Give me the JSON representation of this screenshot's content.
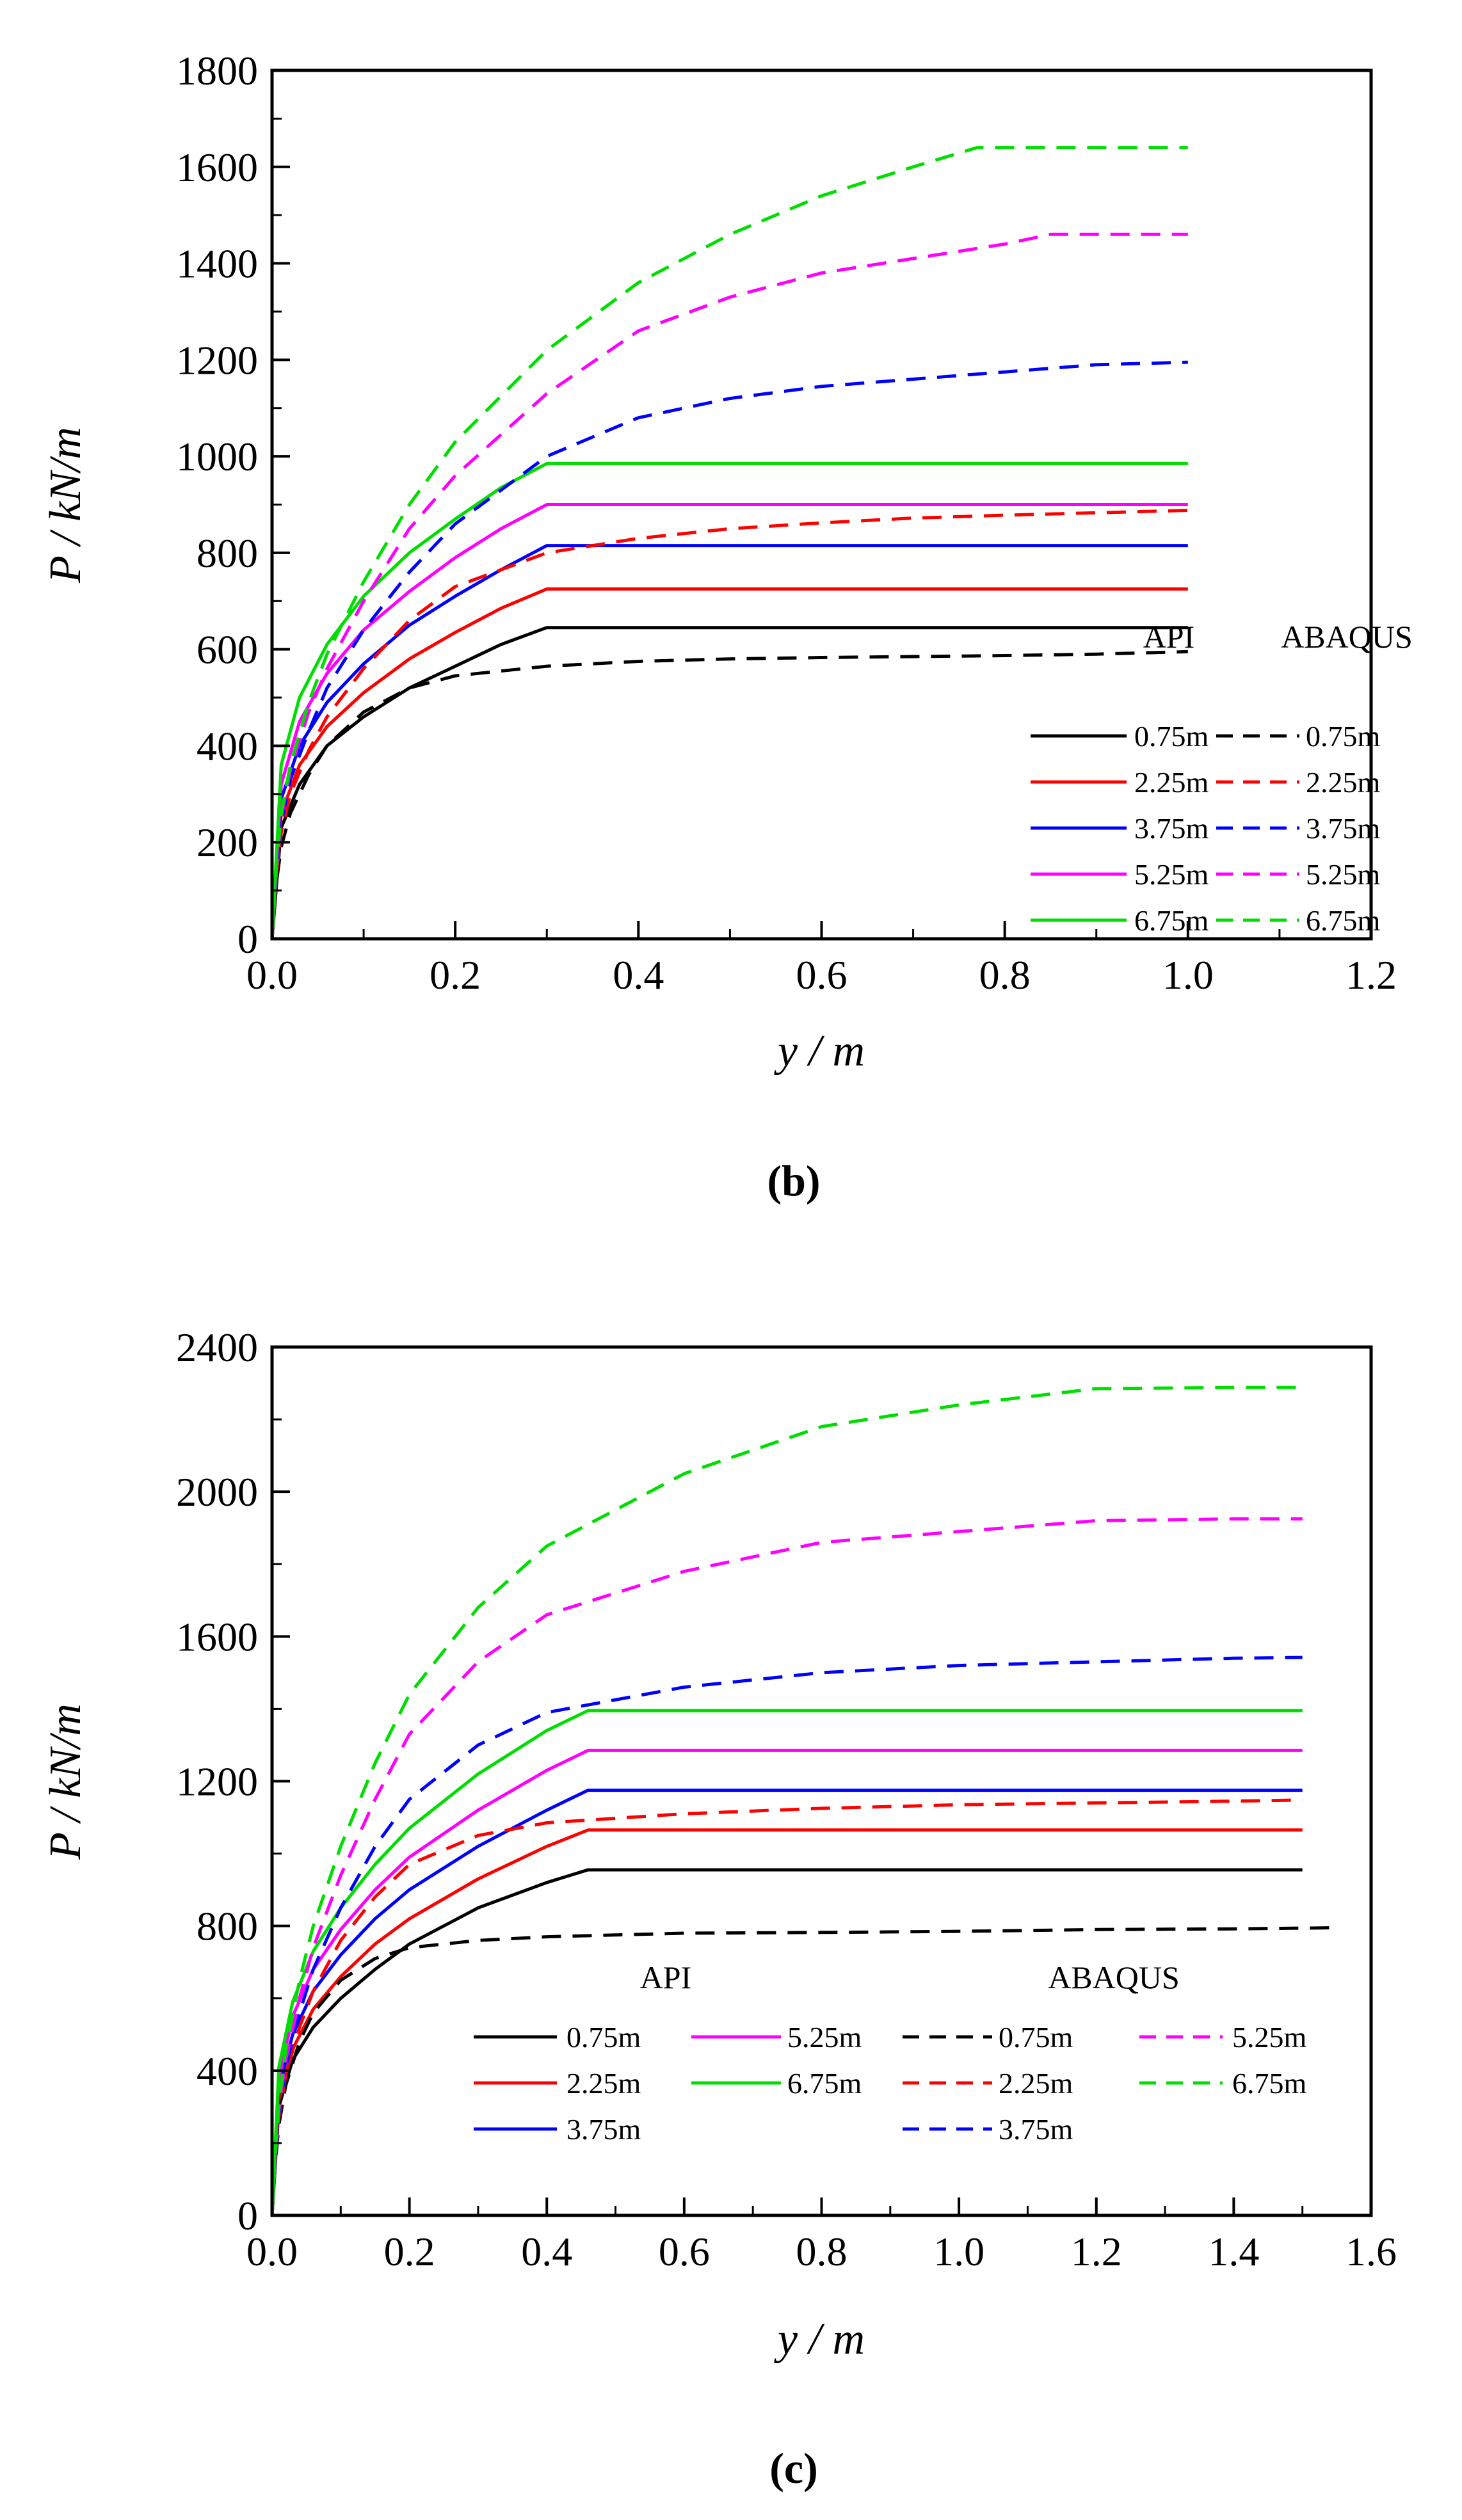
{
  "chart_data": [
    {
      "type": "line",
      "caption": "(b)",
      "xlabel": "y / m",
      "ylabel": "P / kN/m",
      "xlim": [
        0,
        1.2
      ],
      "ylim": [
        0,
        1800
      ],
      "xticks": [
        0,
        0.2,
        0.4,
        0.6,
        0.8,
        1.0,
        1.2
      ],
      "xtick_labels": [
        "0.0",
        "0.2",
        "0.4",
        "0.6",
        "0.8",
        "1.0",
        "1.2"
      ],
      "yticks": [
        0,
        200,
        400,
        600,
        800,
        1000,
        1200,
        1400,
        1600,
        1800
      ],
      "ytick_labels": [
        "0",
        "200",
        "400",
        "600",
        "800",
        "1000",
        "1200",
        "1400",
        "1600",
        "1800"
      ],
      "grid": false,
      "legend": {
        "placement": "bottom-right",
        "layout": "two-column",
        "headers": [
          "API",
          "ABAQUS"
        ]
      },
      "series": [
        {
          "name": "0.75m",
          "group": "API",
          "color": "#000000",
          "dash": "solid",
          "x": [
            0,
            0.01,
            0.03,
            0.06,
            0.1,
            0.15,
            0.2,
            0.25,
            0.3,
            1.0
          ],
          "y": [
            0,
            230,
            320,
            400,
            460,
            520,
            565,
            610,
            645,
            645
          ]
        },
        {
          "name": "2.25m",
          "group": "API",
          "color": "#ff0000",
          "dash": "solid",
          "x": [
            0,
            0.01,
            0.03,
            0.06,
            0.1,
            0.15,
            0.2,
            0.25,
            0.3,
            1.0
          ],
          "y": [
            0,
            260,
            360,
            440,
            510,
            580,
            635,
            685,
            725,
            725
          ]
        },
        {
          "name": "3.75m",
          "group": "API",
          "color": "#0000ff",
          "dash": "solid",
          "x": [
            0,
            0.01,
            0.03,
            0.06,
            0.1,
            0.15,
            0.2,
            0.25,
            0.3,
            1.0
          ],
          "y": [
            0,
            290,
            400,
            490,
            570,
            650,
            710,
            765,
            815,
            815
          ]
        },
        {
          "name": "5.25m",
          "group": "API",
          "color": "#ff00ff",
          "dash": "solid",
          "x": [
            0,
            0.01,
            0.03,
            0.06,
            0.1,
            0.15,
            0.2,
            0.25,
            0.3,
            1.0
          ],
          "y": [
            0,
            320,
            450,
            550,
            640,
            720,
            790,
            850,
            900,
            900
          ]
        },
        {
          "name": "6.75m",
          "group": "API",
          "color": "#00dd00",
          "dash": "solid",
          "x": [
            0,
            0.01,
            0.03,
            0.06,
            0.1,
            0.15,
            0.2,
            0.25,
            0.3,
            1.0
          ],
          "y": [
            0,
            360,
            500,
            610,
            710,
            800,
            870,
            935,
            985,
            985
          ]
        },
        {
          "name": "0.75m",
          "group": "ABAQUS",
          "color": "#000000",
          "dash": "dashed",
          "x": [
            0,
            0.005,
            0.01,
            0.02,
            0.04,
            0.06,
            0.1,
            0.15,
            0.2,
            0.3,
            0.4,
            0.5,
            0.6,
            0.7,
            0.8,
            0.9,
            1.0
          ],
          "y": [
            0,
            120,
            190,
            260,
            340,
            400,
            470,
            520,
            545,
            565,
            575,
            580,
            583,
            585,
            587,
            590,
            595
          ]
        },
        {
          "name": "2.25m",
          "group": "ABAQUS",
          "color": "#ff0000",
          "dash": "dashed",
          "x": [
            0,
            0.005,
            0.01,
            0.02,
            0.04,
            0.06,
            0.1,
            0.15,
            0.2,
            0.3,
            0.4,
            0.5,
            0.6,
            0.7,
            0.8,
            0.9,
            1.0
          ],
          "y": [
            0,
            140,
            220,
            300,
            390,
            460,
            560,
            660,
            730,
            800,
            830,
            850,
            862,
            872,
            878,
            883,
            888
          ]
        },
        {
          "name": "3.75m",
          "group": "ABAQUS",
          "color": "#0000ff",
          "dash": "dashed",
          "x": [
            0,
            0.005,
            0.01,
            0.02,
            0.04,
            0.06,
            0.1,
            0.15,
            0.2,
            0.3,
            0.4,
            0.5,
            0.6,
            0.7,
            0.8,
            0.9,
            1.0
          ],
          "y": [
            0,
            150,
            240,
            330,
            430,
            520,
            640,
            760,
            860,
            1000,
            1080,
            1120,
            1145,
            1160,
            1175,
            1190,
            1195
          ]
        },
        {
          "name": "5.25m",
          "group": "ABAQUS",
          "color": "#ff00ff",
          "dash": "dashed",
          "x": [
            0,
            0.005,
            0.01,
            0.02,
            0.04,
            0.06,
            0.1,
            0.15,
            0.2,
            0.3,
            0.4,
            0.5,
            0.6,
            0.7,
            0.8,
            0.85,
            1.0
          ],
          "y": [
            0,
            150,
            250,
            350,
            470,
            560,
            700,
            850,
            960,
            1130,
            1260,
            1330,
            1380,
            1410,
            1440,
            1460,
            1460
          ]
        },
        {
          "name": "6.75m",
          "group": "ABAQUS",
          "color": "#00dd00",
          "dash": "dashed",
          "x": [
            0,
            0.005,
            0.01,
            0.02,
            0.04,
            0.06,
            0.1,
            0.15,
            0.2,
            0.3,
            0.4,
            0.5,
            0.6,
            0.7,
            0.77,
            1.0
          ],
          "y": [
            0,
            160,
            260,
            360,
            490,
            590,
            740,
            900,
            1030,
            1220,
            1360,
            1460,
            1540,
            1600,
            1640,
            1640
          ]
        }
      ]
    },
    {
      "type": "line",
      "caption": "(c)",
      "xlabel": "y / m",
      "ylabel": "P / kN/m",
      "xlim": [
        0,
        1.6
      ],
      "ylim": [
        0,
        2400
      ],
      "xticks": [
        0,
        0.2,
        0.4,
        0.6,
        0.8,
        1.0,
        1.2,
        1.4,
        1.6
      ],
      "xtick_labels": [
        "0.0",
        "0.2",
        "0.4",
        "0.6",
        "0.8",
        "1.0",
        "1.2",
        "1.4",
        "1.6"
      ],
      "yticks": [
        0,
        400,
        800,
        1200,
        1600,
        2000,
        2400
      ],
      "ytick_labels": [
        "0",
        "400",
        "800",
        "1200",
        "1600",
        "2000",
        "2400"
      ],
      "grid": false,
      "legend": {
        "placement": "bottom-center",
        "layout": "grouped",
        "headers": [
          "API",
          "ABAQUS"
        ]
      },
      "series": [
        {
          "name": "0.75m",
          "group": "API",
          "color": "#000000",
          "dash": "solid",
          "x": [
            0,
            0.01,
            0.03,
            0.06,
            0.1,
            0.15,
            0.2,
            0.3,
            0.4,
            0.46,
            1.5
          ],
          "y": [
            0,
            300,
            430,
            520,
            600,
            680,
            750,
            850,
            920,
            955,
            955
          ]
        },
        {
          "name": "2.25m",
          "group": "API",
          "color": "#ff0000",
          "dash": "solid",
          "x": [
            0,
            0.01,
            0.03,
            0.06,
            0.1,
            0.15,
            0.2,
            0.3,
            0.4,
            0.46,
            1.5
          ],
          "y": [
            0,
            320,
            460,
            570,
            660,
            750,
            820,
            930,
            1020,
            1065,
            1065
          ]
        },
        {
          "name": "3.75m",
          "group": "API",
          "color": "#0000ff",
          "dash": "solid",
          "x": [
            0,
            0.01,
            0.03,
            0.06,
            0.1,
            0.15,
            0.2,
            0.3,
            0.4,
            0.46,
            1.5
          ],
          "y": [
            0,
            350,
            500,
            620,
            720,
            820,
            900,
            1020,
            1120,
            1175,
            1175
          ]
        },
        {
          "name": "5.25m",
          "group": "API",
          "color": "#ff00ff",
          "dash": "solid",
          "x": [
            0,
            0.01,
            0.03,
            0.06,
            0.1,
            0.15,
            0.2,
            0.3,
            0.4,
            0.46,
            1.5
          ],
          "y": [
            0,
            380,
            550,
            680,
            790,
            900,
            990,
            1120,
            1230,
            1285,
            1285
          ]
        },
        {
          "name": "6.75m",
          "group": "API",
          "color": "#00dd00",
          "dash": "solid",
          "x": [
            0,
            0.01,
            0.03,
            0.06,
            0.1,
            0.15,
            0.2,
            0.3,
            0.4,
            0.46,
            1.5
          ],
          "y": [
            0,
            410,
            590,
            730,
            850,
            970,
            1070,
            1220,
            1340,
            1395,
            1395
          ]
        },
        {
          "name": "0.75m",
          "group": "ABAQUS",
          "color": "#000000",
          "dash": "dashed",
          "x": [
            0,
            0.005,
            0.01,
            0.02,
            0.04,
            0.06,
            0.1,
            0.15,
            0.2,
            0.3,
            0.4,
            0.6,
            0.8,
            1.0,
            1.2,
            1.4,
            1.55
          ],
          "y": [
            0,
            150,
            250,
            360,
            480,
            560,
            650,
            710,
            740,
            760,
            770,
            780,
            782,
            785,
            790,
            792,
            795
          ]
        },
        {
          "name": "2.25m",
          "group": "ABAQUS",
          "color": "#ff0000",
          "dash": "dashed",
          "x": [
            0,
            0.005,
            0.01,
            0.02,
            0.04,
            0.06,
            0.1,
            0.15,
            0.2,
            0.3,
            0.4,
            0.6,
            0.8,
            1.0,
            1.2,
            1.4,
            1.5
          ],
          "y": [
            0,
            160,
            270,
            390,
            520,
            620,
            760,
            880,
            970,
            1050,
            1085,
            1110,
            1125,
            1135,
            1140,
            1145,
            1148
          ]
        },
        {
          "name": "3.75m",
          "group": "ABAQUS",
          "color": "#0000ff",
          "dash": "dashed",
          "x": [
            0,
            0.005,
            0.01,
            0.02,
            0.04,
            0.06,
            0.1,
            0.15,
            0.2,
            0.3,
            0.4,
            0.6,
            0.8,
            1.0,
            1.2,
            1.4,
            1.5
          ],
          "y": [
            0,
            160,
            280,
            410,
            560,
            680,
            850,
            1020,
            1150,
            1300,
            1390,
            1460,
            1500,
            1520,
            1530,
            1540,
            1542
          ]
        },
        {
          "name": "5.25m",
          "group": "ABAQUS",
          "color": "#ff00ff",
          "dash": "dashed",
          "x": [
            0,
            0.005,
            0.01,
            0.02,
            0.04,
            0.06,
            0.1,
            0.15,
            0.2,
            0.3,
            0.4,
            0.6,
            0.8,
            1.0,
            1.2,
            1.4,
            1.5
          ],
          "y": [
            0,
            170,
            290,
            430,
            600,
            740,
            940,
            1150,
            1330,
            1530,
            1660,
            1780,
            1860,
            1890,
            1920,
            1925,
            1925
          ]
        },
        {
          "name": "6.75m",
          "group": "ABAQUS",
          "color": "#00dd00",
          "dash": "dashed",
          "x": [
            0,
            0.005,
            0.01,
            0.02,
            0.04,
            0.06,
            0.1,
            0.15,
            0.2,
            0.3,
            0.4,
            0.6,
            0.8,
            1.0,
            1.2,
            1.4,
            1.5
          ],
          "y": [
            0,
            180,
            310,
            460,
            650,
            800,
            1020,
            1250,
            1440,
            1680,
            1850,
            2050,
            2180,
            2240,
            2285,
            2288,
            2288
          ]
        }
      ]
    }
  ]
}
